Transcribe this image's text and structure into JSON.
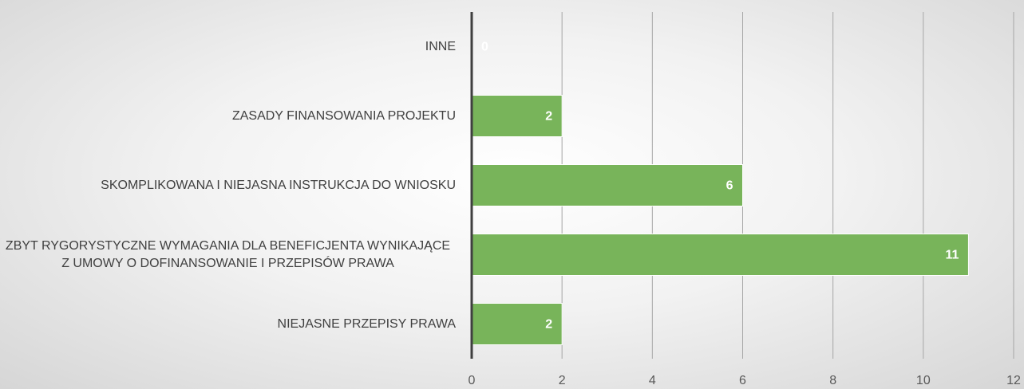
{
  "chart_data": {
    "type": "bar",
    "orientation": "horizontal",
    "categories": [
      "INNE",
      "ZASADY FINANSOWANIA PROJEKTU",
      "SKOMPLIKOWANA I NIEJASNA INSTRUKCJA DO WNIOSKU",
      "ZBYT RYGORYSTYCZNE WYMAGANIA DLA BENEFICJENTA WYNIKAJĄCE Z UMOWY O DOFINANSOWANIE I PRZEPISÓW PRAWA",
      "NIEJASNE PRZEPISY PRAWA"
    ],
    "values": [
      0,
      2,
      6,
      11,
      2
    ],
    "color": "#78b45a",
    "xlim": [
      0,
      12
    ],
    "xticks": [
      0,
      2,
      4,
      6,
      8,
      10,
      12
    ],
    "grid": true
  }
}
